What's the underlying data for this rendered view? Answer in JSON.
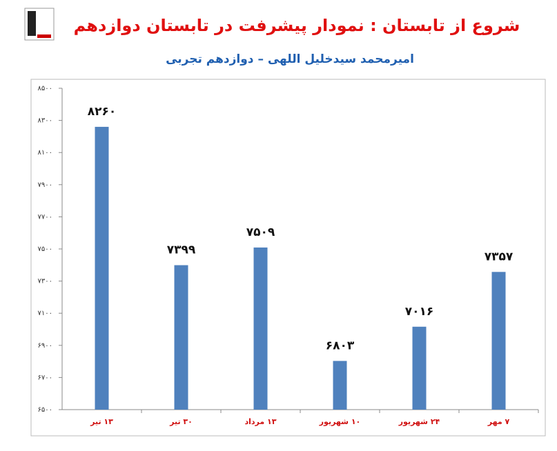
{
  "chart_data": {
    "type": "bar",
    "title": "شروع از تابستان : نمودار پیشرفت در تابستان دوازدهم",
    "subtitle": "امیرمحمد سیدخلیل اللهی – دوازدهم تجربی",
    "categories": [
      "۱۳ تیر",
      "۳۰ تیر",
      "۱۳ مرداد",
      "۱۰ شهریور",
      "۲۴ شهریور",
      "۷ مهر"
    ],
    "values": [
      8260,
      7399,
      7509,
      6803,
      7016,
      7357
    ],
    "value_labels": [
      "۸۲۶۰",
      "۷۳۹۹",
      "۷۵۰۹",
      "۶۸۰۳",
      "۷۰۱۶",
      "۷۳۵۷"
    ],
    "color": "#4f81bd",
    "ylim": [
      6500,
      8500
    ],
    "yticks": [
      {
        "value": 6500,
        "label": "۶۵۰۰"
      },
      {
        "value": 6700,
        "label": "۶۷۰۰"
      },
      {
        "value": 6900,
        "label": "۶۹۰۰"
      },
      {
        "value": 7100,
        "label": "۷۱۰۰"
      },
      {
        "value": 7300,
        "label": "۷۳۰۰"
      },
      {
        "value": 7500,
        "label": "۷۵۰۰"
      },
      {
        "value": 7700,
        "label": "۷۷۰۰"
      },
      {
        "value": 7900,
        "label": "۷۹۰۰"
      },
      {
        "value": 8100,
        "label": "۸۱۰۰"
      },
      {
        "value": 8300,
        "label": "۸۳۰۰"
      },
      {
        "value": 8500,
        "label": "۸۵۰۰"
      }
    ],
    "grid": false
  }
}
